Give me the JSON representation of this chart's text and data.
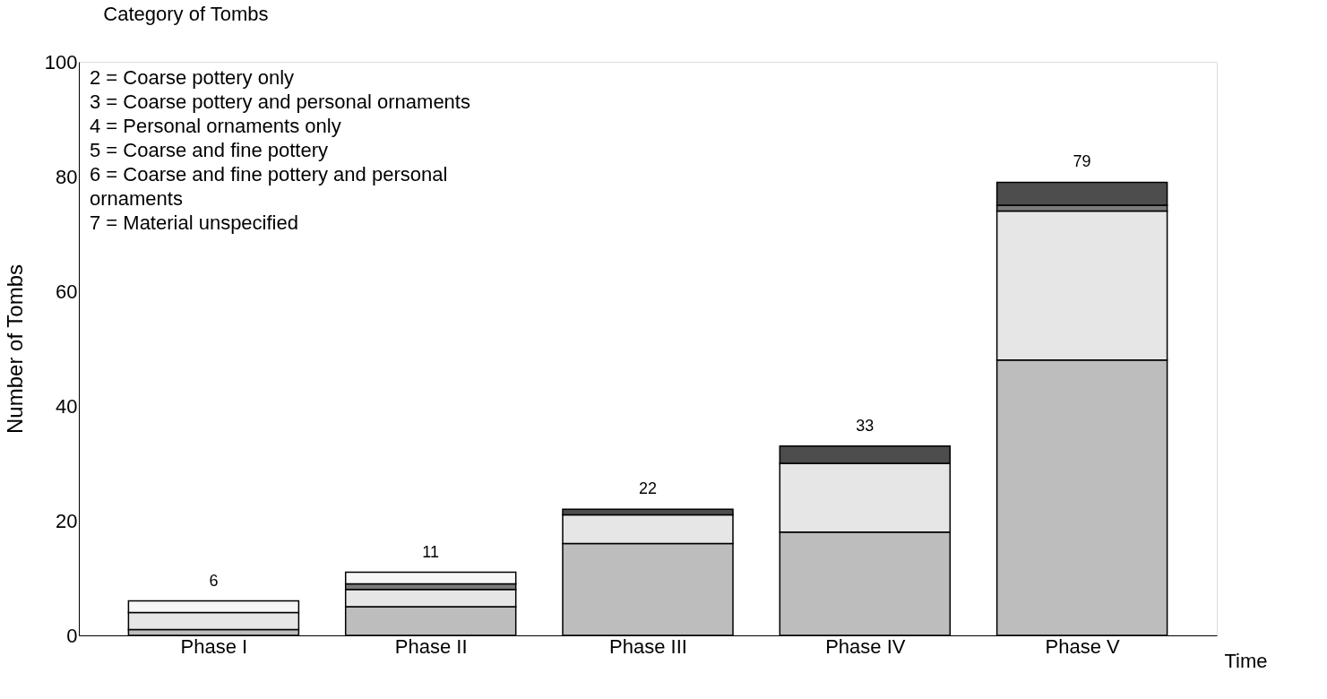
{
  "chart_data": {
    "type": "bar",
    "stacked": true,
    "title": "Category of Tombs",
    "ylabel": "Number of Tombs",
    "xlabel": "Time",
    "categories": [
      "Phase I",
      "Phase II",
      "Phase III",
      "Phase IV",
      "Phase V"
    ],
    "series": [
      {
        "color": "#bdbdbd",
        "values": [
          1,
          5,
          16,
          18,
          48
        ]
      },
      {
        "color": "#e6e6e6",
        "values": [
          3,
          3,
          5,
          12,
          26
        ]
      },
      {
        "color": "#7a7a7a",
        "values": [
          null,
          1,
          null,
          null,
          1
        ]
      },
      {
        "color": "#f7f7f7",
        "values": [
          2,
          2,
          null,
          null,
          null
        ]
      },
      {
        "color": "#4d4d4d",
        "values": [
          null,
          null,
          1,
          3,
          4
        ]
      }
    ],
    "totals": [
      "6",
      "11",
      "22",
      "33",
      "79"
    ],
    "ylim": [
      0,
      100
    ],
    "yticks": [
      0,
      20,
      40,
      60,
      80,
      100
    ],
    "grid": false,
    "annotations": [
      "2 = Coarse pottery only",
      "3 = Coarse pottery and personal ornaments",
      "4 = Personal ornaments only",
      "5 = Coarse and fine pottery",
      "6 = Coarse and fine pottery and personal\nornaments",
      "7 = Material unspecified"
    ]
  }
}
